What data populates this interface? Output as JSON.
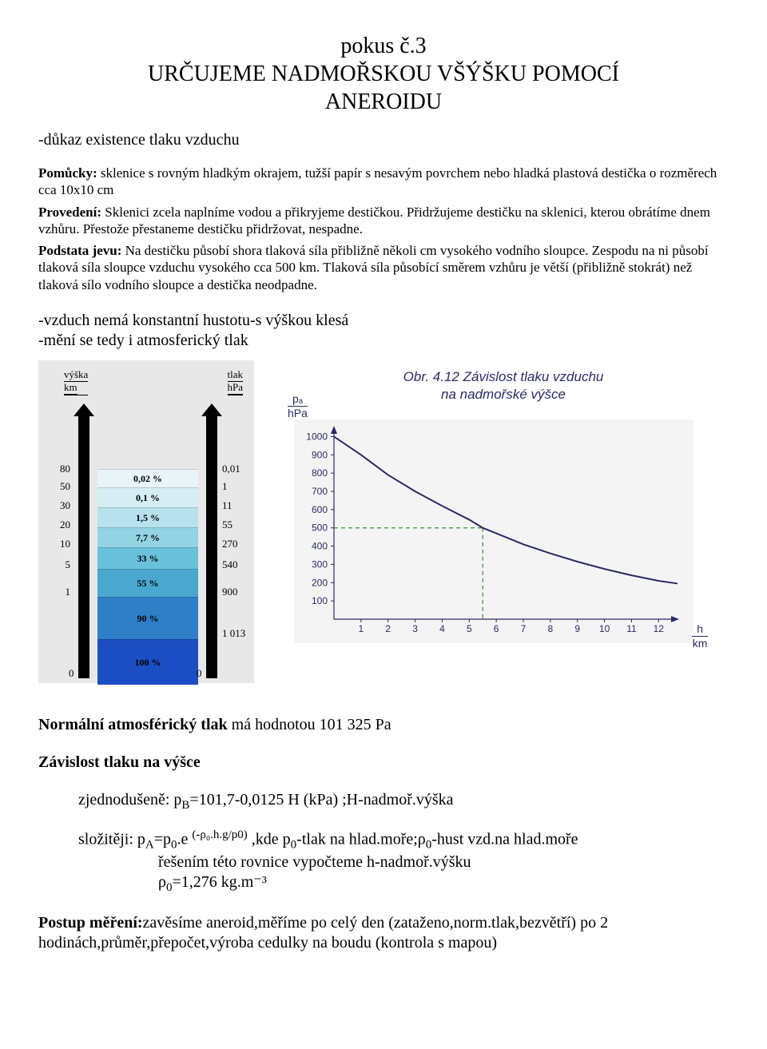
{
  "header": {
    "line1": "pokus č.3",
    "line2": "URČUJEME NADMOŘSKOU VŠÝŠKU POMOCÍ",
    "line3": "ANEROIDU"
  },
  "intro": "-důkaz existence tlaku vzduchu",
  "pomucky_label": "Pomůcky:",
  "pomucky_text": " sklenice s rovným hladkým okrajem, tužší papír s nesavým povrchem nebo hladká plastová destička o rozměrech cca 10x10 cm",
  "provedeni_label": "Provedení:",
  "provedeni_text": " Sklenici zcela naplníme vodou a přikryjeme destičkou. Přidržujeme destičku na sklenici, kterou obrátíme dnem vzhůru. Přestože přestaneme destičku přidržovat, nespadne.",
  "podstata_label": "Podstata jevu:",
  "podstata_text": " Na destičku působí shora tlaková síla přibližně několi cm vysokého vodního sloupce. Zespodu na ni působí tlaková síla sloupce vzduchu vysokého cca 500 km. Tlaková síla působící směrem vzhůru je větší (přibližně stokrát) než tlaková sílo vodního sloupce a destička  neodpadne.",
  "bullets": {
    "b1": "-vzduch nemá konstantní hustotu-s výškou klesá",
    "b2": "-mění se tedy i atmosferický tlak"
  },
  "fig1": {
    "hdr_left_top": "výška",
    "hdr_left_bot": "km",
    "hdr_right_top": "tlak",
    "hdr_right_bot": "hPa",
    "rows": [
      {
        "h": "80",
        "pct": "0,02 %",
        "p": "0,01",
        "seg_h": 22,
        "color": "#e9f4f8"
      },
      {
        "h": "50",
        "pct": "0,1 %",
        "p": "1",
        "seg_h": 24,
        "color": "#d5edf3"
      },
      {
        "h": "30",
        "pct": "1,5 %",
        "p": "11",
        "seg_h": 24,
        "color": "#b7e1ec"
      },
      {
        "h": "20",
        "pct": "7,7 %",
        "p": "55",
        "seg_h": 24,
        "color": "#93d3e4"
      },
      {
        "h": "10",
        "pct": "33 %",
        "p": "270",
        "seg_h": 26,
        "color": "#6ac1da"
      },
      {
        "h": "5",
        "pct": "55 %",
        "p": "540",
        "seg_h": 34,
        "color": "#4aa8cf"
      },
      {
        "h": "1",
        "pct": "90 %",
        "p": "900",
        "seg_h": 52,
        "color": "#2f7fc7"
      },
      {
        "h": "",
        "pct": "100 %",
        "p": "1 013",
        "seg_h": 56,
        "color": "#1b4ec2"
      }
    ],
    "zero_label": "0",
    "arrow_color": "#000000",
    "bg": "#e8e8e8"
  },
  "fig2": {
    "title_l1": "Obr. 4.12 Závislost tlaku vzduchu",
    "title_l2": "na nadmořské výšce",
    "y_sym": "pₐ",
    "y_unit": "hPa",
    "x_sym": "h",
    "x_unit": "km",
    "xticks": [
      1,
      2,
      3,
      4,
      5,
      6,
      7,
      8,
      9,
      10,
      11,
      12
    ],
    "yticks": [
      100,
      200,
      300,
      400,
      500,
      600,
      700,
      800,
      900,
      1000
    ],
    "ylim": [
      0,
      1050
    ],
    "xlim": [
      0,
      12.7
    ],
    "curve": [
      [
        0,
        1000
      ],
      [
        1,
        900
      ],
      [
        2,
        790
      ],
      [
        3,
        700
      ],
      [
        4,
        620
      ],
      [
        5,
        545
      ],
      [
        5.5,
        500
      ],
      [
        6,
        470
      ],
      [
        7,
        410
      ],
      [
        8,
        360
      ],
      [
        9,
        315
      ],
      [
        10,
        275
      ],
      [
        11,
        240
      ],
      [
        12,
        210
      ],
      [
        12.7,
        195
      ]
    ],
    "marker_x": 5.5,
    "marker_y": 500,
    "axis_color": "#2a2a66",
    "curve_color": "#2a2a66",
    "dash_color": "#3a8a3a",
    "bg": "#f4f4f4"
  },
  "bottom": {
    "l1a": "Normální atmosférický tlak",
    "l1b": " má hodnotou 101 325 Pa",
    "l2": "Závislost tlaku na výšce",
    "l3a": "zjednodušeně:   p",
    "l3b": "=101,7-0,0125 H   (kPa) ;H-nadmoř.výška",
    "l3sub": "B",
    "l4a": "složitěji:    p",
    "l4sub1": "A",
    "l4b": "=p",
    "l4sub2": "0",
    "l4c": ".e ",
    "l4sup": "(-ρ₀.h.g/p0)",
    "l4d": "        ,kde p",
    "l4sub3": "0",
    "l4e": "-tlak na hlad.moře;ρ",
    "l4sub4": "0",
    "l4f": "-hust vzd.na hlad.moře",
    "l5": "řešením této rovnice vypočteme h-nadmoř.výšku",
    "l6a": "ρ",
    "l6sub": "0",
    "l6b": "=1,276 kg.m⁻³",
    "l7a": "Postup měření:",
    "l7b": "zavěsíme aneroid,měříme po celý den (zataženo,norm.tlak,bezvětří) po 2 hodinách,průměr,přepočet,výroba cedulky na boudu (kontrola s mapou)"
  }
}
